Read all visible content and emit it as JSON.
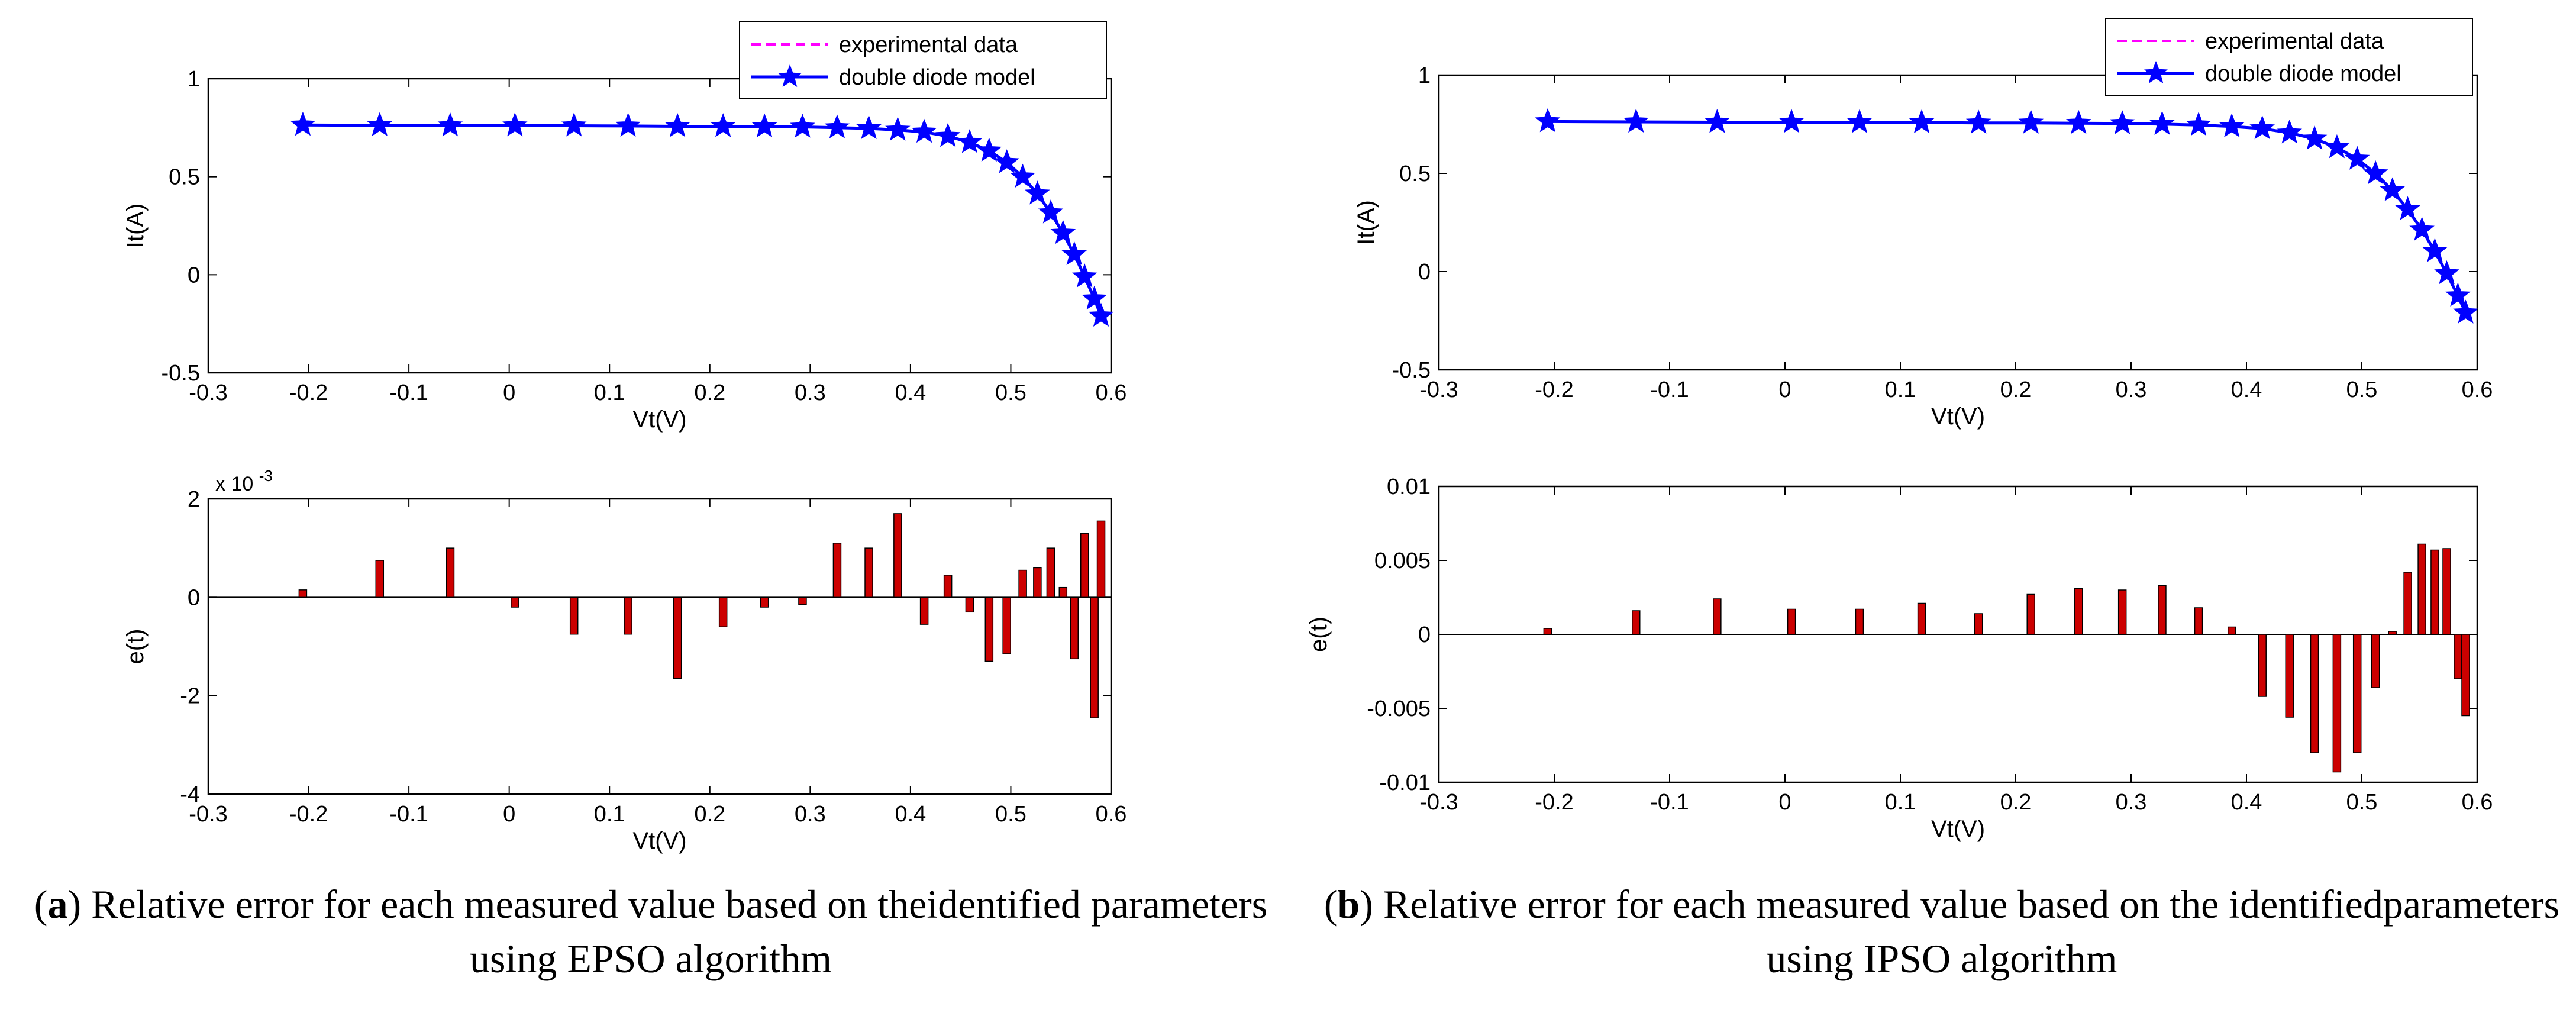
{
  "colors": {
    "experimental": "#ff00ff",
    "model": "#0000ff",
    "bar_fill": "#cc0000",
    "bar_edge": "#000000",
    "axis": "#000000"
  },
  "captions": {
    "a": {
      "letter": "a",
      "text": "Relative error for each measured value based on theidentified parameters using EPSO algorithm"
    },
    "b": {
      "letter": "b",
      "text": "Relative error for each measured value based on the identifiedparameters using IPSO algorithm"
    }
  },
  "chart_data": [
    {
      "id": "a-top",
      "panel": "a",
      "type": "line",
      "xlabel": "Vt(V)",
      "ylabel": "It(A)",
      "xlim": [
        -0.3,
        0.6
      ],
      "ylim": [
        -0.5,
        1
      ],
      "xticks": [
        "-0.3",
        "-0.2",
        "-0.1",
        "0",
        "0.1",
        "0.2",
        "0.3",
        "0.4",
        "0.5",
        "0.6"
      ],
      "yticks": [
        "-0.5",
        "0",
        "0.5",
        "1"
      ],
      "legend": {
        "position": "top-right",
        "entries": [
          "experimental data",
          "double diode model"
        ]
      },
      "x": [
        -0.2057,
        -0.1291,
        -0.0588,
        0.0057,
        0.0646,
        0.1185,
        0.1678,
        0.2132,
        0.2545,
        0.2924,
        0.3269,
        0.3585,
        0.3873,
        0.4137,
        0.4373,
        0.459,
        0.4784,
        0.496,
        0.5119,
        0.5265,
        0.5398,
        0.5521,
        0.5633,
        0.5736,
        0.5833,
        0.59
      ],
      "series": [
        {
          "name": "experimental data",
          "values": [
            0.764,
            0.762,
            0.7605,
            0.7605,
            0.76,
            0.759,
            0.757,
            0.757,
            0.7555,
            0.754,
            0.7505,
            0.7465,
            0.7385,
            0.728,
            0.7065,
            0.6755,
            0.632,
            0.573,
            0.499,
            0.413,
            0.3165,
            0.212,
            0.1035,
            -0.01,
            -0.123,
            -0.21
          ]
        },
        {
          "name": "double diode model",
          "values": [
            0.764,
            0.762,
            0.7605,
            0.7605,
            0.76,
            0.759,
            0.757,
            0.757,
            0.7555,
            0.754,
            0.7505,
            0.7465,
            0.7385,
            0.728,
            0.7065,
            0.6755,
            0.632,
            0.573,
            0.499,
            0.413,
            0.3165,
            0.212,
            0.1035,
            -0.01,
            -0.123,
            -0.21
          ]
        }
      ]
    },
    {
      "id": "a-bottom",
      "panel": "a",
      "type": "bar",
      "xlabel": "Vt(V)",
      "ylabel": "e(t)",
      "xlim": [
        -0.3,
        0.6
      ],
      "ylim": [
        -4,
        2
      ],
      "exponent_base": "x 10",
      "exponent_power": "-3",
      "xticks": [
        "-0.3",
        "-0.2",
        "-0.1",
        "0",
        "0.1",
        "0.2",
        "0.3",
        "0.4",
        "0.5",
        "0.6"
      ],
      "yticks": [
        "-4",
        "-2",
        "0",
        "2"
      ],
      "x": [
        -0.2057,
        -0.1291,
        -0.0588,
        0.0057,
        0.0646,
        0.1185,
        0.1678,
        0.2132,
        0.2545,
        0.2924,
        0.3269,
        0.3585,
        0.3873,
        0.4137,
        0.4373,
        0.459,
        0.4784,
        0.496,
        0.5119,
        0.5265,
        0.5398,
        0.5521,
        0.5633,
        0.5736,
        0.5833,
        0.59
      ],
      "values": [
        0.15,
        0.75,
        1.0,
        -0.2,
        -0.75,
        -0.75,
        -1.65,
        -0.6,
        -0.2,
        -0.15,
        1.1,
        1.0,
        1.7,
        -0.55,
        0.45,
        -0.3,
        -1.3,
        -1.15,
        0.55,
        0.6,
        1.0,
        0.2,
        -1.25,
        1.3,
        -2.45,
        1.55
      ]
    },
    {
      "id": "b-top",
      "panel": "b",
      "type": "line",
      "xlabel": "Vt(V)",
      "ylabel": "It(A)",
      "xlim": [
        -0.3,
        0.6
      ],
      "ylim": [
        -0.5,
        1
      ],
      "xticks": [
        "-0.3",
        "-0.2",
        "-0.1",
        "0",
        "0.1",
        "0.2",
        "0.3",
        "0.4",
        "0.5",
        "0.6"
      ],
      "yticks": [
        "-0.5",
        "0",
        "0.5",
        "1"
      ],
      "legend": {
        "position": "top-right",
        "entries": [
          "experimental data",
          "double diode model"
        ]
      },
      "x": [
        -0.2057,
        -0.1291,
        -0.0588,
        0.0057,
        0.0646,
        0.1185,
        0.1678,
        0.2132,
        0.2545,
        0.2924,
        0.3269,
        0.3585,
        0.3873,
        0.4137,
        0.4373,
        0.459,
        0.4784,
        0.496,
        0.5119,
        0.5265,
        0.5398,
        0.5521,
        0.5633,
        0.5736,
        0.5833,
        0.59
      ],
      "series": [
        {
          "name": "experimental data",
          "values": [
            0.764,
            0.762,
            0.7605,
            0.7605,
            0.76,
            0.759,
            0.757,
            0.757,
            0.7555,
            0.754,
            0.7505,
            0.7465,
            0.7385,
            0.728,
            0.7065,
            0.6755,
            0.632,
            0.573,
            0.499,
            0.413,
            0.3165,
            0.212,
            0.1035,
            -0.01,
            -0.123,
            -0.21
          ]
        },
        {
          "name": "double diode model",
          "values": [
            0.764,
            0.762,
            0.7605,
            0.7605,
            0.76,
            0.759,
            0.757,
            0.757,
            0.7555,
            0.754,
            0.7505,
            0.7465,
            0.7385,
            0.728,
            0.7065,
            0.6755,
            0.632,
            0.573,
            0.499,
            0.413,
            0.3165,
            0.212,
            0.1035,
            -0.01,
            -0.123,
            -0.21
          ]
        }
      ]
    },
    {
      "id": "b-bottom",
      "panel": "b",
      "type": "bar",
      "xlabel": "Vt(V)",
      "ylabel": "e(t)",
      "xlim": [
        -0.3,
        0.6
      ],
      "ylim": [
        -0.01,
        0.01
      ],
      "xticks": [
        "-0.3",
        "-0.2",
        "-0.1",
        "0",
        "0.1",
        "0.2",
        "0.3",
        "0.4",
        "0.5",
        "0.6"
      ],
      "yticks": [
        "-0.01",
        "-0.005",
        "0",
        "0.005",
        "0.01"
      ],
      "x": [
        -0.2057,
        -0.1291,
        -0.0588,
        0.0057,
        0.0646,
        0.1185,
        0.1678,
        0.2132,
        0.2545,
        0.2924,
        0.3269,
        0.3585,
        0.3873,
        0.4137,
        0.4373,
        0.459,
        0.4784,
        0.496,
        0.5119,
        0.5265,
        0.5398,
        0.5521,
        0.5633,
        0.5736,
        0.5833,
        0.59
      ],
      "values": [
        0.0004,
        0.0016,
        0.0024,
        0.0017,
        0.0017,
        0.0021,
        0.0014,
        0.0027,
        0.0031,
        0.003,
        0.0033,
        0.0018,
        0.0005,
        -0.0042,
        -0.0056,
        -0.008,
        -0.0093,
        -0.008,
        -0.0036,
        0.0002,
        0.0042,
        0.0061,
        0.0057,
        0.0058,
        -0.003,
        -0.0055
      ]
    }
  ]
}
